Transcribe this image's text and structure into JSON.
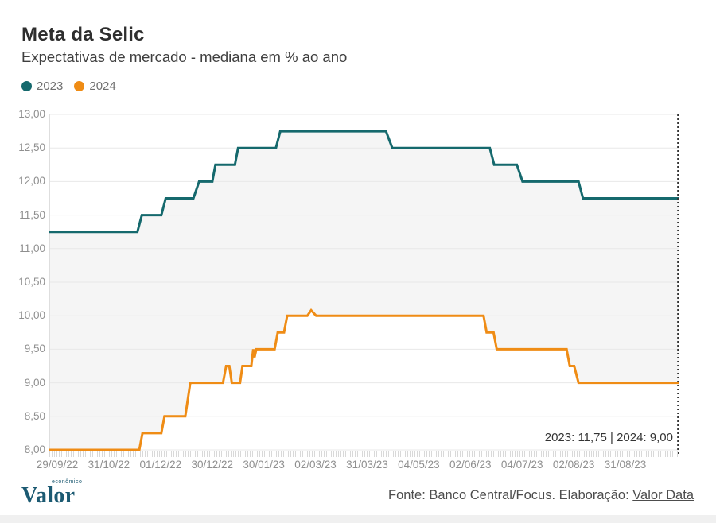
{
  "header": {
    "title": "Meta da Selic",
    "subtitle": "Expectativas de mercado - mediana em % ao ano"
  },
  "legend": [
    {
      "label": "2023",
      "color": "#15696d"
    },
    {
      "label": "2024",
      "color": "#ef8c15"
    }
  ],
  "annotation": {
    "text": "2023: 11,75 | 2024: 9,00"
  },
  "footer": {
    "logo_text": "Valor",
    "logo_super": "econômico",
    "source_prefix": "Fonte: Banco Central/Focus. Elaboração: ",
    "source_link": "Valor Data"
  },
  "chart_data": {
    "type": "line",
    "step_style": true,
    "title": "Meta da Selic",
    "subtitle": "Expectativas de mercado - mediana em % ao ano",
    "ylabel": "% ao ano",
    "ylim": [
      8.0,
      13.0
    ],
    "ytick_step": 0.5,
    "grid": "horizontal",
    "legend_position": "top-left",
    "y_ticks": [
      "13,00",
      "12,50",
      "12,00",
      "11,50",
      "11,00",
      "10,50",
      "10,00",
      "9,50",
      "9,00",
      "8,50",
      "8,00"
    ],
    "x_ticks": [
      "29/09/22",
      "31/10/22",
      "01/12/22",
      "30/12/22",
      "30/01/23",
      "02/03/23",
      "31/03/23",
      "04/05/23",
      "02/06/23",
      "04/07/23",
      "02/08/23",
      "31/08/23"
    ],
    "vertical_marker": {
      "x_fraction": 0.999,
      "style": "dotted"
    },
    "end_values": {
      "2023": "11,75",
      "2024": "9,00"
    },
    "series": [
      {
        "name": "2023",
        "color": "#15696d",
        "area_fill": "#f5f5f5",
        "points": [
          [
            0.0,
            11.25
          ],
          [
            0.14,
            11.25
          ],
          [
            0.147,
            11.5
          ],
          [
            0.178,
            11.5
          ],
          [
            0.185,
            11.75
          ],
          [
            0.229,
            11.75
          ],
          [
            0.238,
            12.0
          ],
          [
            0.259,
            12.0
          ],
          [
            0.264,
            12.25
          ],
          [
            0.295,
            12.25
          ],
          [
            0.3,
            12.5
          ],
          [
            0.36,
            12.5
          ],
          [
            0.367,
            12.75
          ],
          [
            0.535,
            12.75
          ],
          [
            0.545,
            12.5
          ],
          [
            0.7,
            12.5
          ],
          [
            0.707,
            12.25
          ],
          [
            0.743,
            12.25
          ],
          [
            0.752,
            12.0
          ],
          [
            0.841,
            12.0
          ],
          [
            0.848,
            11.75
          ],
          [
            1.0,
            11.75
          ]
        ]
      },
      {
        "name": "2024",
        "color": "#ef8c15",
        "area_fill": "#ffffff",
        "points": [
          [
            0.0,
            8.0
          ],
          [
            0.143,
            8.0
          ],
          [
            0.148,
            8.25
          ],
          [
            0.178,
            8.25
          ],
          [
            0.183,
            8.5
          ],
          [
            0.216,
            8.5
          ],
          [
            0.224,
            9.0
          ],
          [
            0.276,
            9.0
          ],
          [
            0.281,
            9.25
          ],
          [
            0.286,
            9.25
          ],
          [
            0.29,
            9.0
          ],
          [
            0.303,
            9.0
          ],
          [
            0.307,
            9.25
          ],
          [
            0.321,
            9.25
          ],
          [
            0.324,
            9.5
          ],
          [
            0.326,
            9.38
          ],
          [
            0.329,
            9.5
          ],
          [
            0.358,
            9.5
          ],
          [
            0.363,
            9.75
          ],
          [
            0.373,
            9.75
          ],
          [
            0.378,
            10.0
          ],
          [
            0.41,
            10.0
          ],
          [
            0.416,
            10.08
          ],
          [
            0.424,
            10.0
          ],
          [
            0.69,
            10.0
          ],
          [
            0.695,
            9.75
          ],
          [
            0.706,
            9.75
          ],
          [
            0.711,
            9.5
          ],
          [
            0.822,
            9.5
          ],
          [
            0.827,
            9.25
          ],
          [
            0.834,
            9.25
          ],
          [
            0.841,
            9.0
          ],
          [
            1.0,
            9.0
          ]
        ]
      }
    ]
  }
}
